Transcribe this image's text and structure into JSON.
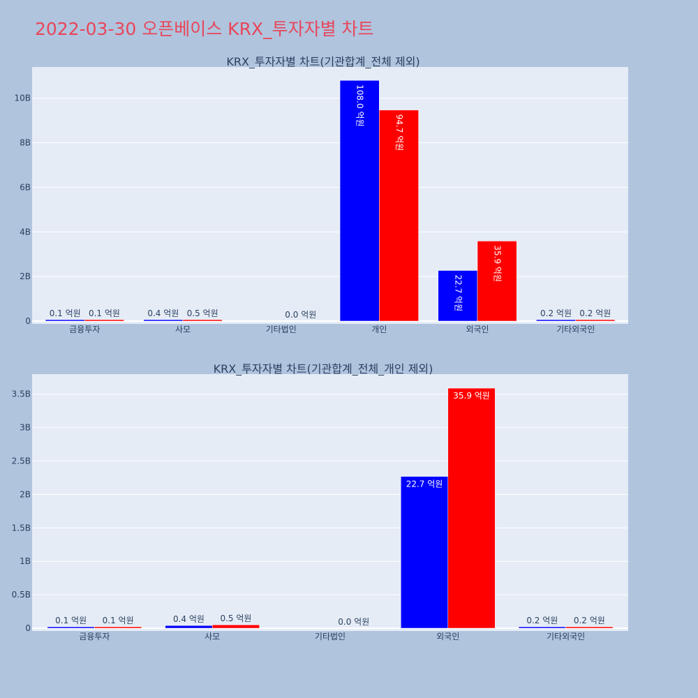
{
  "page": {
    "title": "2022-03-30 오픈베이스 KRX_투자자별 차트"
  },
  "colors": {
    "background": "#b0c4de",
    "plot_bg": "#e5ecf6",
    "grid": "#ffffff",
    "series_a": "#0000ff",
    "series_b": "#ff0000",
    "title": "#e8465a",
    "text": "#2a3f5f"
  },
  "chart_data": [
    {
      "type": "bar",
      "title": "KRX_투자자별 차트(기관합계_전체 제외)",
      "categories": [
        "금융투자",
        "사모",
        "기타법인",
        "개인",
        "외국인",
        "기타외국인"
      ],
      "ylim": [
        0,
        11.4
      ],
      "yticks": [
        0,
        2,
        4,
        6,
        8,
        10
      ],
      "ytick_labels": [
        "0",
        "2B",
        "4B",
        "6B",
        "8B",
        "10B"
      ],
      "label_orientation": "vertical",
      "series": [
        {
          "color": "#0000ff",
          "values": [
            0.01,
            0.04,
            0.0,
            10.8,
            2.27,
            0.02
          ],
          "labels": [
            "0.1 억원",
            "0.4 억원",
            "",
            "108.0 억원",
            "22.7 억원",
            "0.2 억원"
          ]
        },
        {
          "color": "#ff0000",
          "values": [
            0.01,
            0.05,
            0.0,
            9.47,
            3.59,
            0.02
          ],
          "labels": [
            "0.1 억원",
            "0.5 억원",
            "0.0 억원",
            "94.7 억원",
            "35.9 억원",
            "0.2 억원"
          ]
        }
      ],
      "grid": true,
      "legend": "none"
    },
    {
      "type": "bar",
      "title": "KRX_투자자별 차트(기관합계_전체_개인 제외)",
      "categories": [
        "금융투자",
        "사모",
        "기타법인",
        "외국인",
        "기타외국인"
      ],
      "ylim": [
        0,
        3.8
      ],
      "yticks": [
        0,
        0.5,
        1,
        1.5,
        2,
        2.5,
        3,
        3.5
      ],
      "ytick_labels": [
        "0",
        "0.5B",
        "1B",
        "1.5B",
        "2B",
        "2.5B",
        "3B",
        "3.5B"
      ],
      "label_orientation": "horizontal",
      "series": [
        {
          "color": "#0000ff",
          "values": [
            0.01,
            0.04,
            0.0,
            2.27,
            0.02
          ],
          "labels": [
            "0.1 억원",
            "0.4 억원",
            "",
            "22.7 억원",
            "0.2 억원"
          ]
        },
        {
          "color": "#ff0000",
          "values": [
            0.01,
            0.05,
            0.0,
            3.59,
            0.02
          ],
          "labels": [
            "0.1 억원",
            "0.5 억원",
            "0.0 억원",
            "35.9 억원",
            "0.2 억원"
          ]
        }
      ],
      "grid": true,
      "legend": "none"
    }
  ]
}
